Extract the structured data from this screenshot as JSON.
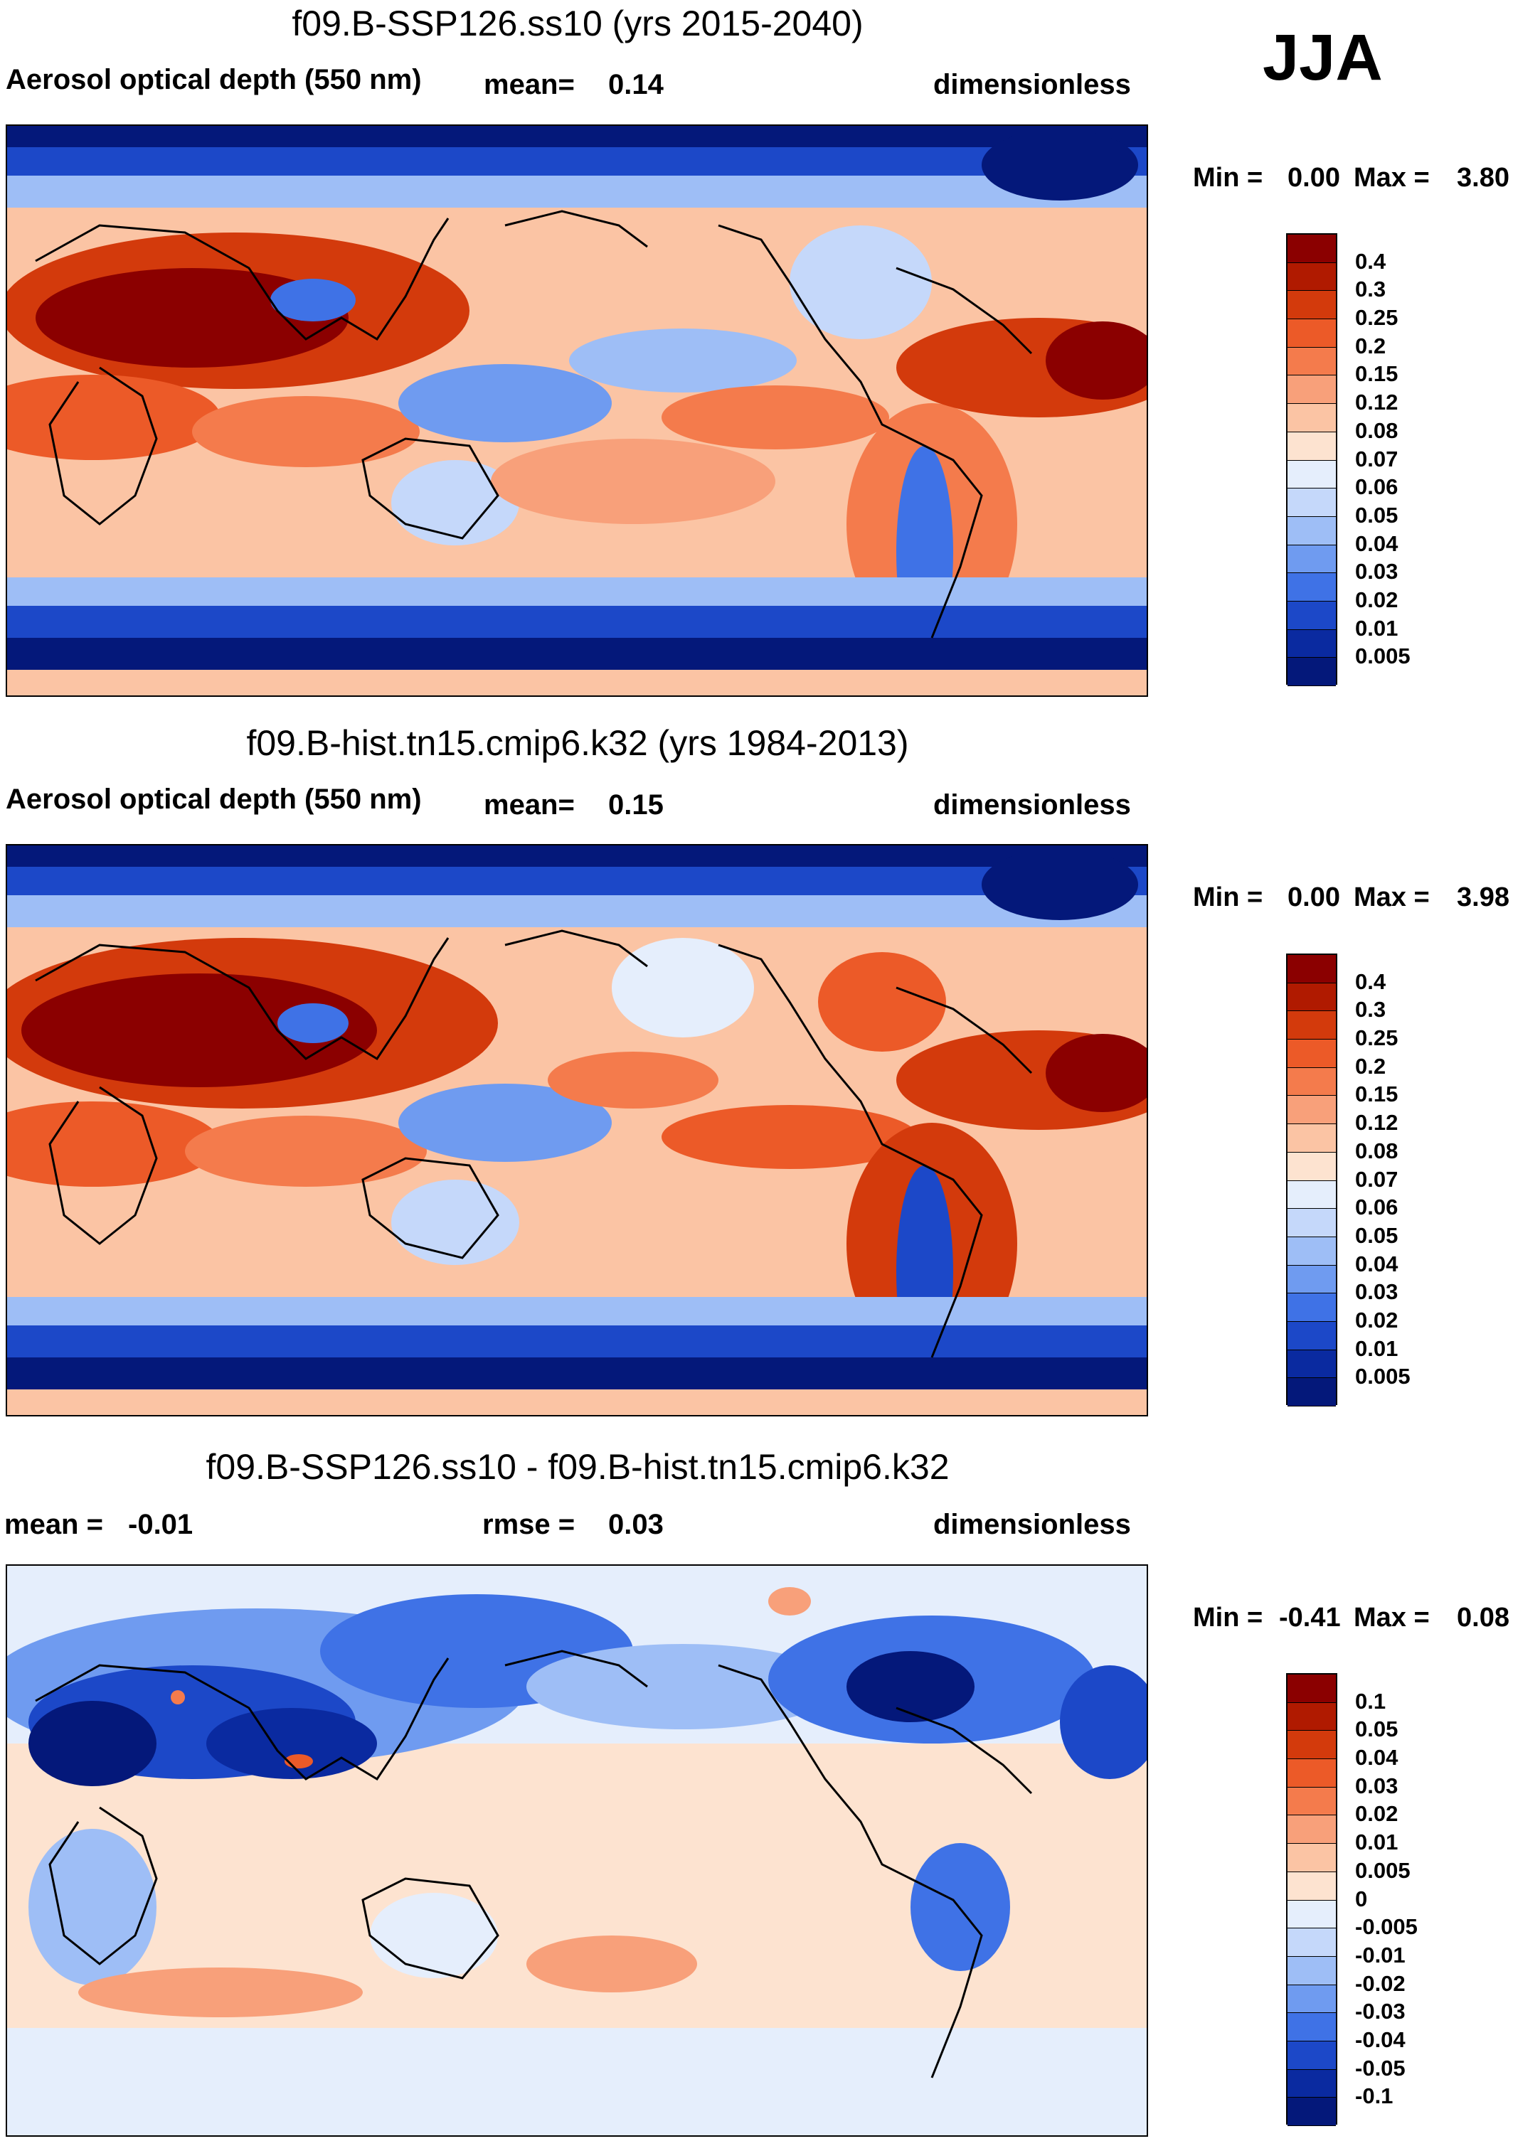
{
  "season": "JJA",
  "panels": [
    {
      "id": "p1",
      "title": "f09.B-SSP126.ss10 (yrs 2015-2040)",
      "left_label": "Aerosol optical depth (550 nm)",
      "mid_label": "mean=",
      "mid_value": "0.14",
      "units": "dimensionless",
      "min_label": "Min =",
      "min_value": "0.00",
      "max_label": "Max =",
      "max_value": "3.80",
      "levels": [
        "0.4",
        "0.3",
        "0.25",
        "0.2",
        "0.15",
        "0.12",
        "0.08",
        "0.07",
        "0.06",
        "0.05",
        "0.04",
        "0.03",
        "0.02",
        "0.01",
        "0.005"
      ],
      "colors": [
        "#8b0000",
        "#b01a00",
        "#d33a0c",
        "#ec5a28",
        "#f47b4c",
        "#f8a07a",
        "#fbc4a4",
        "#fde3d0",
        "#e5eefc",
        "#c5d8fa",
        "#9ebef6",
        "#6f9bf0",
        "#3f72e6",
        "#1c48c8",
        "#0a2aa0",
        "#04187a"
      ]
    },
    {
      "id": "p2",
      "title": "f09.B-hist.tn15.cmip6.k32 (yrs 1984-2013)",
      "left_label": "Aerosol optical depth (550 nm)",
      "mid_label": "mean=",
      "mid_value": "0.15",
      "units": "dimensionless",
      "min_label": "Min =",
      "min_value": "0.00",
      "max_label": "Max =",
      "max_value": "3.98",
      "levels": [
        "0.4",
        "0.3",
        "0.25",
        "0.2",
        "0.15",
        "0.12",
        "0.08",
        "0.07",
        "0.06",
        "0.05",
        "0.04",
        "0.03",
        "0.02",
        "0.01",
        "0.005"
      ],
      "colors": [
        "#8b0000",
        "#b01a00",
        "#d33a0c",
        "#ec5a28",
        "#f47b4c",
        "#f8a07a",
        "#fbc4a4",
        "#fde3d0",
        "#e5eefc",
        "#c5d8fa",
        "#9ebef6",
        "#6f9bf0",
        "#3f72e6",
        "#1c48c8",
        "#0a2aa0",
        "#04187a"
      ]
    },
    {
      "id": "p3",
      "title": "f09.B-SSP126.ss10 - f09.B-hist.tn15.cmip6.k32",
      "left_label": "mean =",
      "left_value": "-0.01",
      "mid_label": "rmse =",
      "mid_value": "0.03",
      "units": "dimensionless",
      "min_label": "Min =",
      "min_value": "-0.41",
      "max_label": "Max =",
      "max_value": "0.08",
      "levels": [
        "0.1",
        "0.05",
        "0.04",
        "0.03",
        "0.02",
        "0.01",
        "0.005",
        "0",
        "-0.005",
        "-0.01",
        "-0.02",
        "-0.03",
        "-0.04",
        "-0.05",
        "-0.1"
      ],
      "colors": [
        "#8b0000",
        "#b01a00",
        "#d33a0c",
        "#ec5a28",
        "#f47b4c",
        "#f8a07a",
        "#fbc4a4",
        "#fde3d0",
        "#e5eefc",
        "#c5d8fa",
        "#9ebef6",
        "#6f9bf0",
        "#3f72e6",
        "#1c48c8",
        "#0a2aa0",
        "#04187a"
      ]
    }
  ]
}
